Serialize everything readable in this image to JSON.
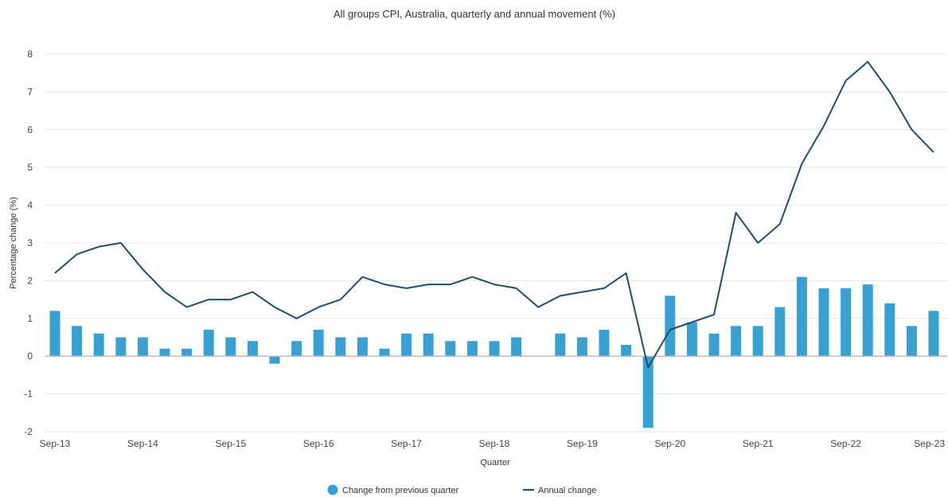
{
  "chart_data": {
    "type": "bar",
    "title": "All groups CPI, Australia, quarterly and annual movement (%)",
    "xlabel": "Quarter",
    "ylabel": "Percentage change (%)",
    "ylim": [
      -2,
      8
    ],
    "yticks": [
      -2,
      -1,
      0,
      1,
      2,
      3,
      4,
      5,
      6,
      7,
      8
    ],
    "grid": true,
    "legend_position": "bottom",
    "categories": [
      "Sep-13",
      "Dec-13",
      "Mar-14",
      "Jun-14",
      "Sep-14",
      "Dec-14",
      "Mar-15",
      "Jun-15",
      "Sep-15",
      "Dec-15",
      "Mar-16",
      "Jun-16",
      "Sep-16",
      "Dec-16",
      "Mar-17",
      "Jun-17",
      "Sep-17",
      "Dec-17",
      "Mar-18",
      "Jun-18",
      "Sep-18",
      "Dec-18",
      "Mar-19",
      "Jun-19",
      "Sep-19",
      "Dec-19",
      "Mar-20",
      "Jun-20",
      "Sep-20",
      "Dec-20",
      "Mar-21",
      "Jun-21",
      "Sep-21",
      "Dec-21",
      "Mar-22",
      "Jun-22",
      "Sep-22",
      "Dec-22",
      "Mar-23",
      "Jun-23",
      "Sep-23"
    ],
    "xtick_labels": [
      "Sep-13",
      "Sep-14",
      "Sep-15",
      "Sep-16",
      "Sep-17",
      "Sep-18",
      "Sep-19",
      "Sep-20",
      "Sep-21",
      "Sep-22",
      "Sep-23"
    ],
    "series": [
      {
        "name": "Change from previous quarter",
        "type": "bar",
        "color": "#3a9fd1",
        "values": [
          1.2,
          0.8,
          0.6,
          0.5,
          0.5,
          0.2,
          0.2,
          0.7,
          0.5,
          0.4,
          -0.2,
          0.4,
          0.7,
          0.5,
          0.5,
          0.2,
          0.6,
          0.6,
          0.4,
          0.4,
          0.4,
          0.5,
          0.0,
          0.6,
          0.5,
          0.7,
          0.3,
          -1.9,
          1.6,
          0.9,
          0.6,
          0.8,
          0.8,
          1.3,
          2.1,
          1.8,
          1.8,
          1.9,
          1.4,
          0.8,
          1.2
        ]
      },
      {
        "name": "Annual change",
        "type": "line",
        "color": "#1f4e6b",
        "values": [
          2.2,
          2.7,
          2.9,
          3.0,
          2.3,
          1.7,
          1.3,
          1.5,
          1.5,
          1.7,
          1.3,
          1.0,
          1.3,
          1.5,
          2.1,
          1.9,
          1.8,
          1.9,
          1.9,
          2.1,
          1.9,
          1.8,
          1.3,
          1.6,
          1.7,
          1.8,
          2.2,
          -0.3,
          0.7,
          0.9,
          1.1,
          3.8,
          3.0,
          3.5,
          5.1,
          6.1,
          7.3,
          7.8,
          7.0,
          6.0,
          5.4
        ]
      }
    ]
  }
}
